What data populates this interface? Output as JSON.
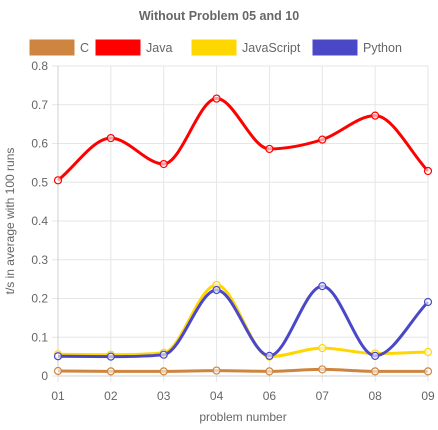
{
  "chart_data": {
    "type": "line",
    "title": "Without Problem 05 and 10",
    "xlabel": "problem number",
    "ylabel": "t/s in average with 100 runs",
    "categories": [
      "01",
      "02",
      "03",
      "04",
      "06",
      "07",
      "08",
      "09"
    ],
    "ylim": [
      0,
      0.8
    ],
    "yticks": [
      "0",
      "0.1",
      "0.2",
      "0.3",
      "0.4",
      "0.5",
      "0.6",
      "0.7",
      "0.8"
    ],
    "grid": true,
    "legend_position": "top",
    "series": [
      {
        "name": "C",
        "color": "#cd853f",
        "values": [
          0.013,
          0.012,
          0.012,
          0.014,
          0.012,
          0.017,
          0.012,
          0.012
        ]
      },
      {
        "name": "Java",
        "color": "#ff0000",
        "values": [
          0.505,
          0.614,
          0.547,
          0.716,
          0.586,
          0.61,
          0.672,
          0.529
        ]
      },
      {
        "name": "JavaScript",
        "color": "#ffd700",
        "values": [
          0.056,
          0.055,
          0.06,
          0.235,
          0.05,
          0.072,
          0.058,
          0.062
        ]
      },
      {
        "name": "Python",
        "color": "#4b48c8",
        "values": [
          0.051,
          0.05,
          0.055,
          0.222,
          0.052,
          0.232,
          0.052,
          0.191
        ]
      }
    ]
  }
}
